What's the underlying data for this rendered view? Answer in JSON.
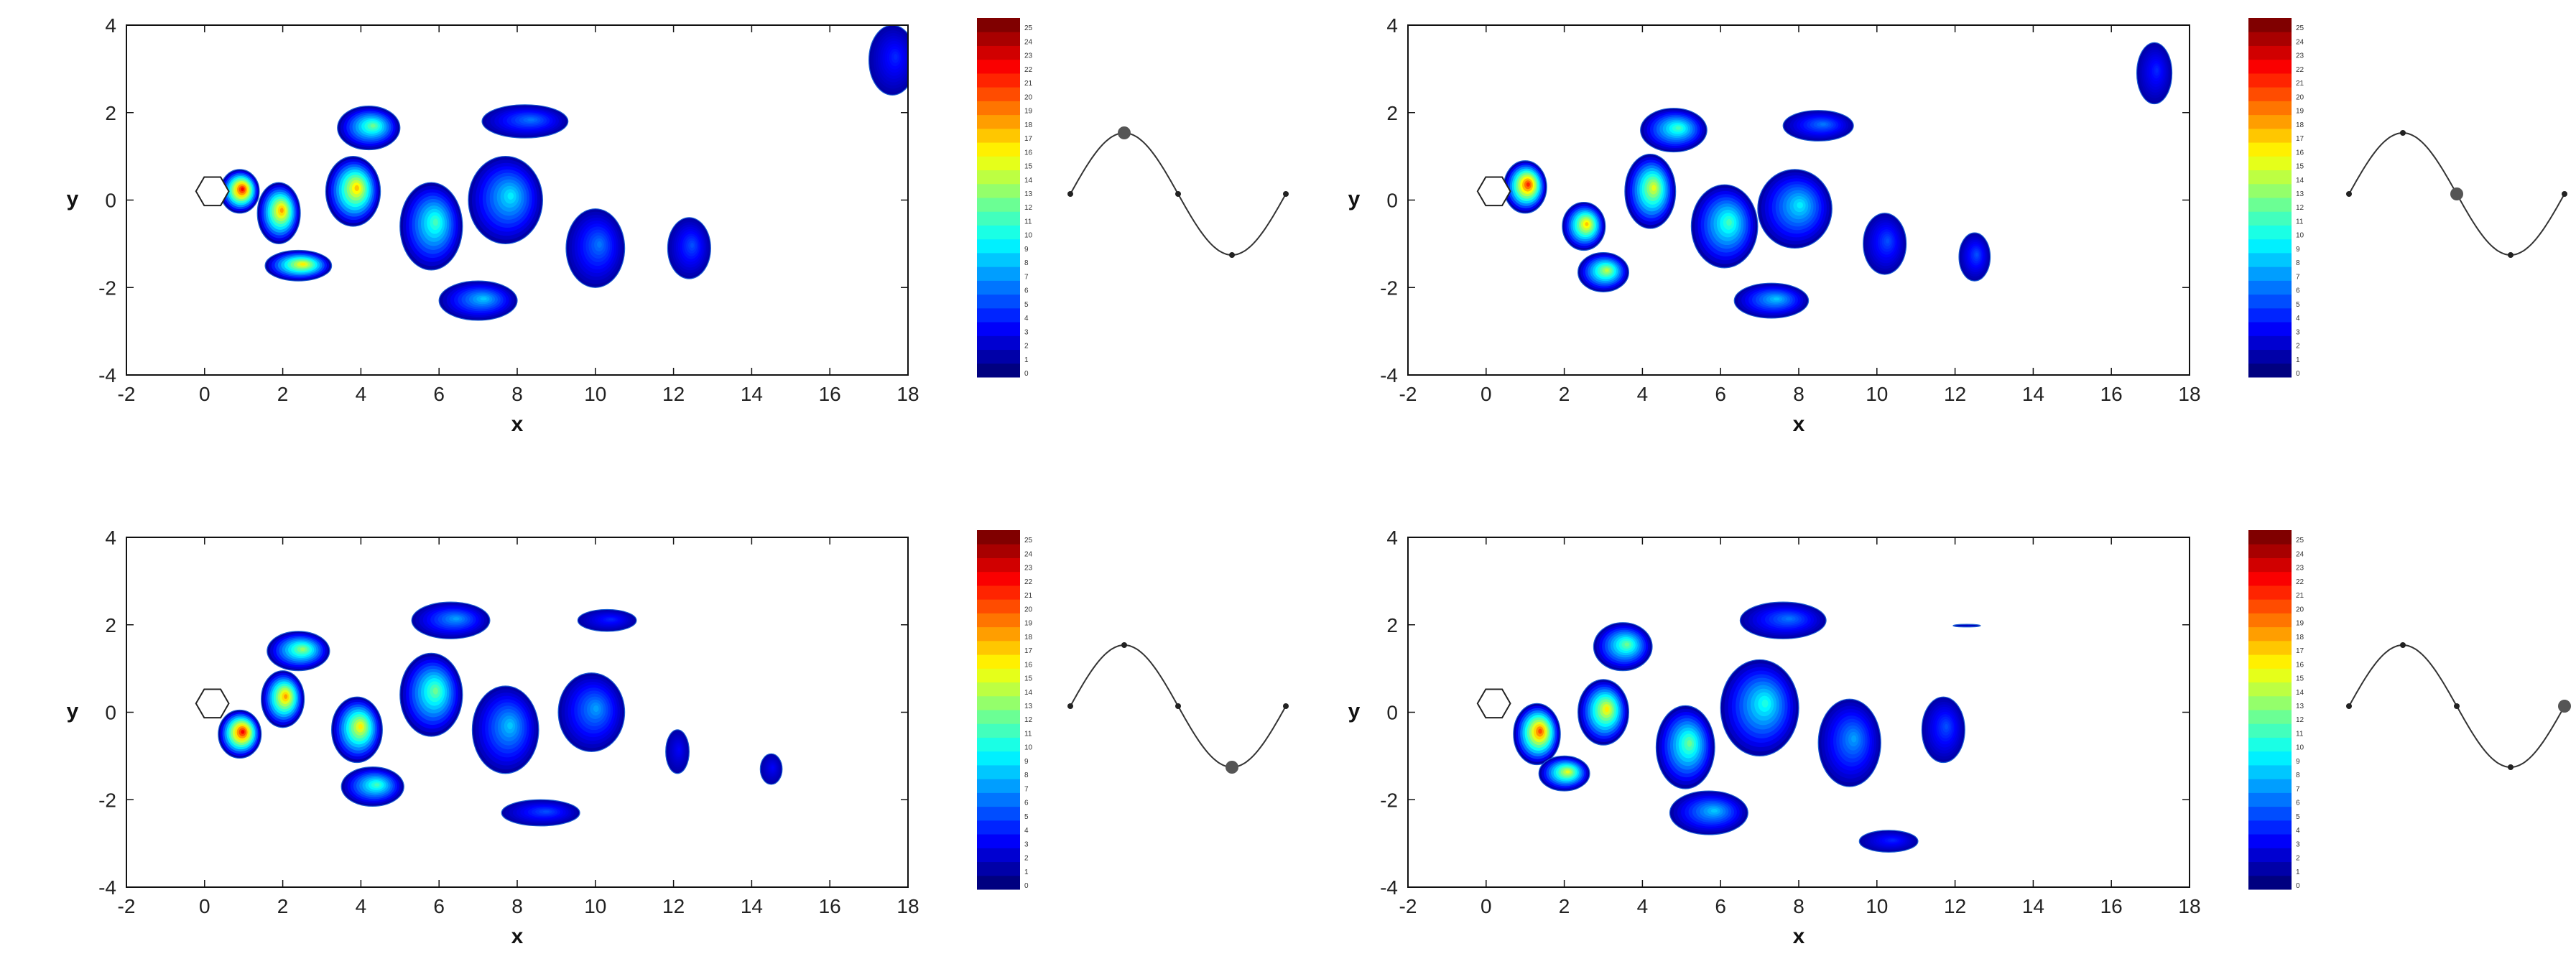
{
  "chart_data": [
    {
      "type": "contour",
      "panel": "top-left",
      "xlabel": "x",
      "ylabel": "y",
      "xlim": [
        -2,
        18
      ],
      "ylim": [
        -4,
        4
      ],
      "xticks": [
        "-2",
        "0",
        "2",
        "4",
        "6",
        "8",
        "10",
        "12",
        "14",
        "16",
        "18"
      ],
      "yticks": [
        "-4",
        "-2",
        "0",
        "2",
        "4"
      ],
      "colorbar": {
        "min": 0,
        "max": 25,
        "labels": [
          "0",
          "1",
          "2",
          "3",
          "4",
          "5",
          "6",
          "7",
          "8",
          "9",
          "10",
          "11",
          "12",
          "13",
          "14",
          "15",
          "16",
          "17",
          "18",
          "19",
          "20",
          "21",
          "22",
          "23",
          "24",
          "25"
        ]
      },
      "vortices": [
        {
          "x": 0.9,
          "y": 0.2,
          "rx": 0.5,
          "ry": 0.5,
          "peak": 22
        },
        {
          "x": 1.9,
          "y": -0.3,
          "rx": 0.55,
          "ry": 0.7,
          "peak": 18
        },
        {
          "x": 2.4,
          "y": -1.5,
          "rx": 0.85,
          "ry": 0.35,
          "peak": 16
        },
        {
          "x": 3.8,
          "y": 0.2,
          "rx": 0.7,
          "ry": 0.8,
          "peak": 17
        },
        {
          "x": 4.2,
          "y": 1.65,
          "rx": 0.8,
          "ry": 0.5,
          "peak": 12
        },
        {
          "x": 5.8,
          "y": -0.6,
          "rx": 0.8,
          "ry": 1.0,
          "peak": 11
        },
        {
          "x": 7.0,
          "y": -2.3,
          "rx": 1.0,
          "ry": 0.45,
          "peak": 8
        },
        {
          "x": 7.7,
          "y": 0.0,
          "rx": 0.95,
          "ry": 1.0,
          "peak": 9
        },
        {
          "x": 8.2,
          "y": 1.8,
          "rx": 1.1,
          "ry": 0.38,
          "peak": 6
        },
        {
          "x": 10.0,
          "y": -1.1,
          "rx": 0.75,
          "ry": 0.9,
          "peak": 6
        },
        {
          "x": 12.4,
          "y": -1.1,
          "rx": 0.55,
          "ry": 0.7,
          "peak": 5
        },
        {
          "x": 17.6,
          "y": 3.2,
          "rx": 0.6,
          "ry": 0.8,
          "peak": 4
        }
      ],
      "phase_marker": {
        "type": "line",
        "x": [
          0,
          0.25,
          0.5,
          0.75,
          1.0
        ],
        "y": [
          0.5,
          1.0,
          0.5,
          0.0,
          0.5
        ],
        "current_phase": 0.25
      }
    },
    {
      "type": "contour",
      "panel": "top-right",
      "xlabel": "x",
      "ylabel": "y",
      "xlim": [
        -2,
        18
      ],
      "ylim": [
        -4,
        4
      ],
      "xticks": [
        "-2",
        "0",
        "2",
        "4",
        "6",
        "8",
        "10",
        "12",
        "14",
        "16",
        "18"
      ],
      "yticks": [
        "-4",
        "-2",
        "0",
        "2",
        "4"
      ],
      "colorbar": {
        "min": 0,
        "max": 25,
        "labels": [
          "0",
          "1",
          "2",
          "3",
          "4",
          "5",
          "6",
          "7",
          "8",
          "9",
          "10",
          "11",
          "12",
          "13",
          "14",
          "15",
          "16",
          "17",
          "18",
          "19",
          "20",
          "21",
          "22",
          "23",
          "24",
          "25"
        ]
      },
      "vortices": [
        {
          "x": 1.0,
          "y": 0.3,
          "rx": 0.55,
          "ry": 0.6,
          "peak": 21
        },
        {
          "x": 2.5,
          "y": -0.6,
          "rx": 0.55,
          "ry": 0.55,
          "peak": 17
        },
        {
          "x": 3.0,
          "y": -1.65,
          "rx": 0.65,
          "ry": 0.45,
          "peak": 14
        },
        {
          "x": 4.2,
          "y": 0.2,
          "rx": 0.65,
          "ry": 0.85,
          "peak": 15
        },
        {
          "x": 4.8,
          "y": 1.6,
          "rx": 0.85,
          "ry": 0.5,
          "peak": 11
        },
        {
          "x": 6.1,
          "y": -0.6,
          "rx": 0.85,
          "ry": 0.95,
          "peak": 11
        },
        {
          "x": 7.3,
          "y": -2.3,
          "rx": 0.95,
          "ry": 0.4,
          "peak": 8
        },
        {
          "x": 7.9,
          "y": -0.2,
          "rx": 0.95,
          "ry": 0.9,
          "peak": 9
        },
        {
          "x": 8.5,
          "y": 1.7,
          "rx": 0.9,
          "ry": 0.35,
          "peak": 6
        },
        {
          "x": 10.2,
          "y": -1.0,
          "rx": 0.55,
          "ry": 0.7,
          "peak": 5
        },
        {
          "x": 12.5,
          "y": -1.3,
          "rx": 0.4,
          "ry": 0.55,
          "peak": 5
        },
        {
          "x": 17.1,
          "y": 2.9,
          "rx": 0.45,
          "ry": 0.7,
          "peak": 4
        }
      ],
      "phase_marker": {
        "type": "line",
        "x": [
          0,
          0.25,
          0.5,
          0.75,
          1.0
        ],
        "y": [
          0.5,
          1.0,
          0.5,
          0.0,
          0.5
        ],
        "current_phase": 0.5
      }
    },
    {
      "type": "contour",
      "panel": "bottom-left",
      "xlabel": "x",
      "ylabel": "y",
      "xlim": [
        -2,
        18
      ],
      "ylim": [
        -4,
        4
      ],
      "xticks": [
        "-2",
        "0",
        "2",
        "4",
        "6",
        "8",
        "10",
        "12",
        "14",
        "16",
        "18"
      ],
      "yticks": [
        "-4",
        "-2",
        "0",
        "2",
        "4"
      ],
      "colorbar": {
        "min": 0,
        "max": 25,
        "labels": [
          "0",
          "1",
          "2",
          "3",
          "4",
          "5",
          "6",
          "7",
          "8",
          "9",
          "10",
          "11",
          "12",
          "13",
          "14",
          "15",
          "16",
          "17",
          "18",
          "19",
          "20",
          "21",
          "22",
          "23",
          "24",
          "25"
        ]
      },
      "vortices": [
        {
          "x": 0.9,
          "y": -0.5,
          "rx": 0.55,
          "ry": 0.55,
          "peak": 22
        },
        {
          "x": 2.0,
          "y": 0.3,
          "rx": 0.55,
          "ry": 0.65,
          "peak": 18
        },
        {
          "x": 2.4,
          "y": 1.4,
          "rx": 0.8,
          "ry": 0.45,
          "peak": 13
        },
        {
          "x": 3.9,
          "y": -0.4,
          "rx": 0.65,
          "ry": 0.75,
          "peak": 16
        },
        {
          "x": 4.3,
          "y": -1.7,
          "rx": 0.8,
          "ry": 0.45,
          "peak": 11
        },
        {
          "x": 5.8,
          "y": 0.4,
          "rx": 0.8,
          "ry": 0.95,
          "peak": 12
        },
        {
          "x": 6.3,
          "y": 2.1,
          "rx": 1.0,
          "ry": 0.42,
          "peak": 7
        },
        {
          "x": 7.7,
          "y": -0.4,
          "rx": 0.85,
          "ry": 1.0,
          "peak": 8
        },
        {
          "x": 8.6,
          "y": -2.3,
          "rx": 1.0,
          "ry": 0.3,
          "peak": 5
        },
        {
          "x": 9.9,
          "y": 0.0,
          "rx": 0.85,
          "ry": 0.9,
          "peak": 7
        },
        {
          "x": 10.3,
          "y": 2.1,
          "rx": 0.75,
          "ry": 0.25,
          "peak": 4
        },
        {
          "x": 12.1,
          "y": -0.9,
          "rx": 0.3,
          "ry": 0.5,
          "peak": 3
        },
        {
          "x": 14.5,
          "y": -1.3,
          "rx": 0.28,
          "ry": 0.35,
          "peak": 3
        }
      ],
      "phase_marker": {
        "type": "line",
        "x": [
          0,
          0.25,
          0.5,
          0.75,
          1.0
        ],
        "y": [
          0.5,
          1.0,
          0.5,
          0.0,
          0.5
        ],
        "current_phase": 0.75
      }
    },
    {
      "type": "contour",
      "panel": "bottom-right",
      "xlabel": "x",
      "ylabel": "y",
      "xlim": [
        -2,
        18
      ],
      "ylim": [
        -4,
        4
      ],
      "xticks": [
        "-2",
        "0",
        "2",
        "4",
        "6",
        "8",
        "10",
        "12",
        "14",
        "16",
        "18"
      ],
      "yticks": [
        "-4",
        "-2",
        "0",
        "2",
        "4"
      ],
      "colorbar": {
        "min": 0,
        "max": 25,
        "labels": [
          "0",
          "1",
          "2",
          "3",
          "4",
          "5",
          "6",
          "7",
          "8",
          "9",
          "10",
          "11",
          "12",
          "13",
          "14",
          "15",
          "16",
          "17",
          "18",
          "19",
          "20",
          "21",
          "22",
          "23",
          "24",
          "25"
        ]
      },
      "vortices": [
        {
          "x": 1.3,
          "y": -0.5,
          "rx": 0.6,
          "ry": 0.7,
          "peak": 20
        },
        {
          "x": 2.0,
          "y": -1.4,
          "rx": 0.65,
          "ry": 0.4,
          "peak": 15
        },
        {
          "x": 3.0,
          "y": 0.0,
          "rx": 0.65,
          "ry": 0.75,
          "peak": 16
        },
        {
          "x": 3.5,
          "y": 1.5,
          "rx": 0.75,
          "ry": 0.55,
          "peak": 12
        },
        {
          "x": 5.1,
          "y": -0.8,
          "rx": 0.75,
          "ry": 0.95,
          "peak": 12
        },
        {
          "x": 5.7,
          "y": -2.3,
          "rx": 1.0,
          "ry": 0.5,
          "peak": 8
        },
        {
          "x": 7.0,
          "y": 0.1,
          "rx": 1.0,
          "ry": 1.1,
          "peak": 10
        },
        {
          "x": 7.6,
          "y": 2.1,
          "rx": 1.1,
          "ry": 0.42,
          "peak": 6
        },
        {
          "x": 9.3,
          "y": -0.7,
          "rx": 0.8,
          "ry": 1.0,
          "peak": 7
        },
        {
          "x": 10.3,
          "y": -2.95,
          "rx": 0.75,
          "ry": 0.25,
          "peak": 4
        },
        {
          "x": 11.7,
          "y": -0.4,
          "rx": 0.55,
          "ry": 0.75,
          "peak": 5
        },
        {
          "x": 12.3,
          "y": 1.98,
          "rx": 0.35,
          "ry": 0.03,
          "peak": 2
        }
      ],
      "phase_marker": {
        "type": "line",
        "x": [
          0,
          0.25,
          0.5,
          0.75,
          1.0
        ],
        "y": [
          0.5,
          1.0,
          0.5,
          0.0,
          0.5
        ],
        "current_phase": 1.0
      }
    }
  ]
}
